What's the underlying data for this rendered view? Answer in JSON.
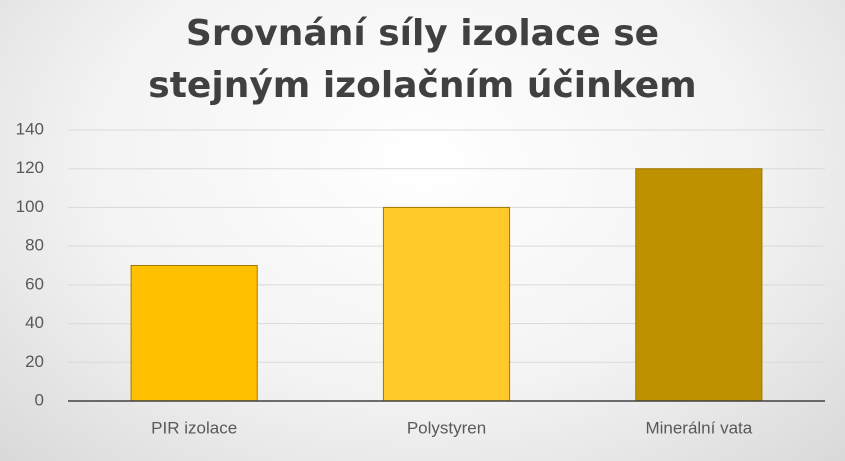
{
  "chart_data": {
    "type": "bar",
    "title": "Srovnání síly izolace se stejným izolačním účinkem",
    "categories": [
      "PIR izolace",
      "Polystyren",
      "Minerální vata"
    ],
    "values": [
      70,
      100,
      120
    ],
    "colors": [
      "#ffc000",
      "#ffc929",
      "#bf9000"
    ],
    "ylim": [
      0,
      140
    ],
    "yticks": [
      0,
      20,
      40,
      60,
      80,
      100,
      120,
      140
    ],
    "grid": true
  }
}
